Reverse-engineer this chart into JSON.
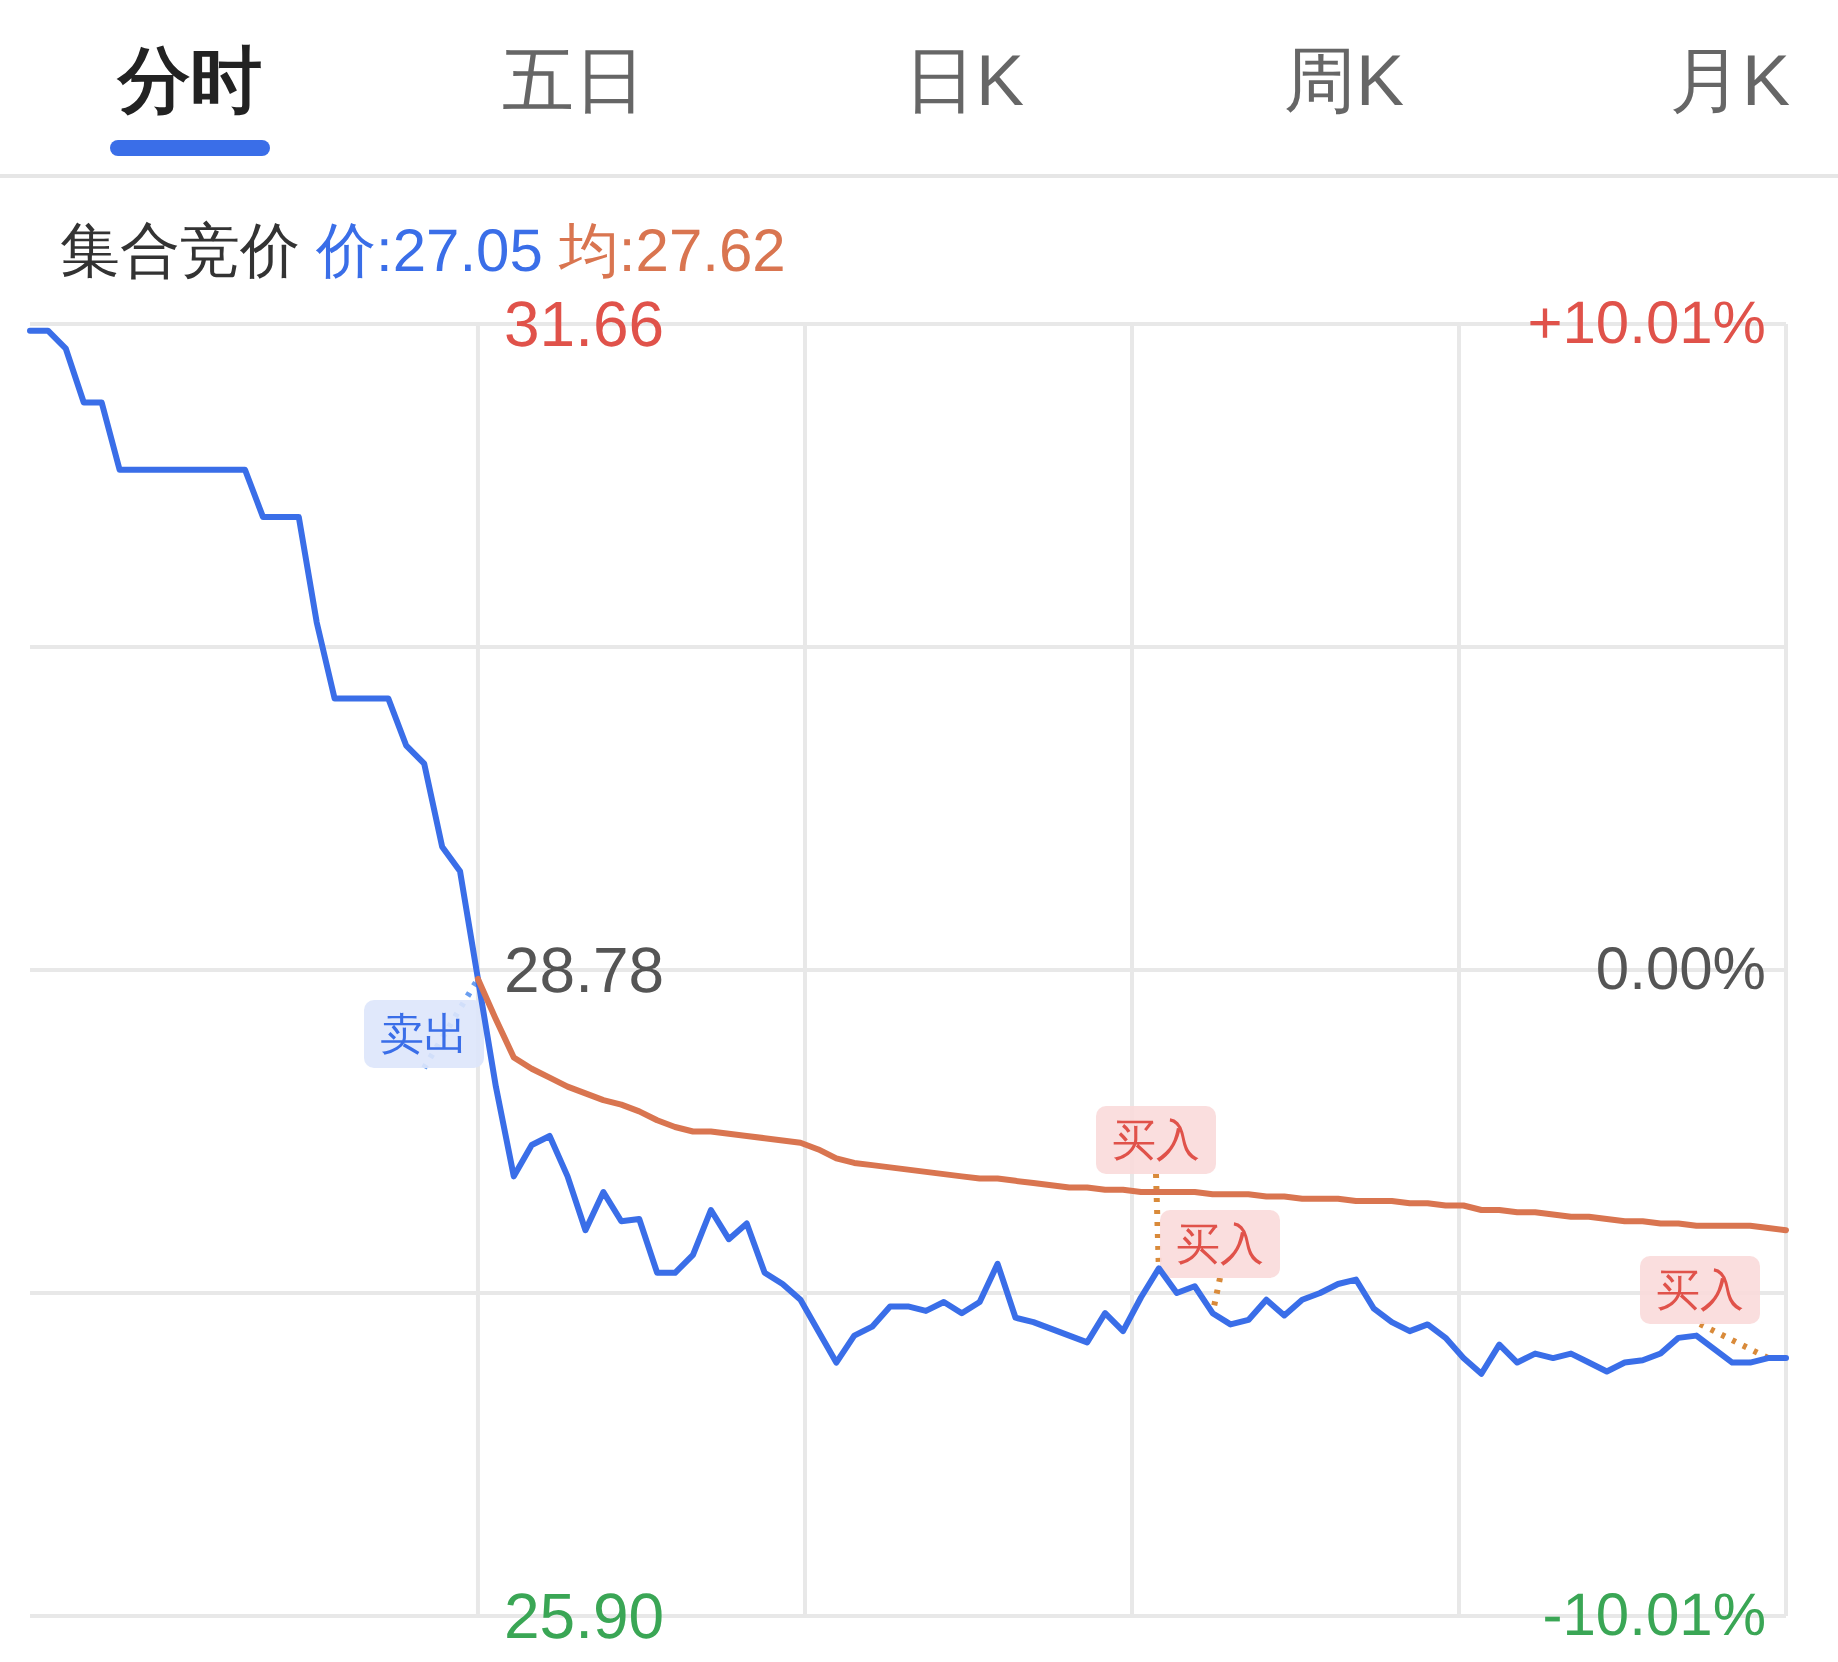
{
  "chart_data": {
    "type": "line",
    "title": "集合竞价",
    "annotations": [
      "分时",
      "五日",
      "日K",
      "周K",
      "月K",
      "卖出",
      "买入",
      "买入",
      "买入"
    ],
    "categories": [
      null,
      null,
      null,
      null,
      null,
      null,
      null,
      null,
      null,
      null,
      null,
      null,
      null,
      null,
      null,
      null,
      null,
      null,
      null,
      null,
      null,
      null,
      null,
      null,
      null,
      null,
      null,
      null,
      null,
      null,
      null,
      null,
      null,
      null,
      null,
      null,
      null,
      null,
      null,
      null,
      null,
      null,
      null,
      null,
      null,
      null,
      null,
      null,
      null,
      null,
      null,
      null,
      null,
      null,
      null,
      null,
      null,
      null,
      null,
      null,
      null,
      null,
      null,
      null,
      null,
      null,
      null,
      null,
      null,
      null,
      null,
      null,
      null,
      null,
      null,
      null,
      null,
      null,
      null,
      null,
      null,
      null,
      null,
      null,
      null,
      null,
      null,
      null,
      null,
      null,
      null,
      null,
      null,
      null,
      null,
      null,
      null,
      null,
      null
    ],
    "series": [
      {
        "name": "价:27.05",
        "color": "#3a6ee8",
        "values": [
          31.63,
          31.63,
          31.55,
          31.31,
          31.31,
          31.01,
          31.01,
          31.01,
          31.01,
          31.01,
          31.01,
          31.01,
          31.01,
          30.8,
          30.8,
          30.8,
          30.33,
          29.99,
          29.99,
          29.99,
          29.99,
          29.78,
          29.7,
          29.33,
          29.22,
          28.74,
          28.26,
          27.86,
          28.0,
          28.04,
          27.86,
          27.62,
          27.79,
          27.66,
          27.67,
          27.43,
          27.43,
          27.51,
          27.71,
          27.58,
          27.65,
          27.43,
          27.38,
          27.31,
          27.17,
          27.03,
          27.15,
          27.19,
          27.28,
          27.28,
          27.26,
          27.3,
          27.25,
          27.3,
          27.47,
          27.23,
          27.21,
          27.18,
          27.15,
          27.12,
          27.25,
          27.17,
          27.32,
          27.45,
          27.34,
          27.37,
          27.25,
          27.2,
          27.22,
          27.31,
          27.24,
          27.31,
          27.34,
          27.38,
          27.4,
          27.27,
          27.21,
          27.17,
          27.2,
          27.14,
          27.05,
          26.98,
          27.11,
          27.03,
          27.07,
          27.05,
          27.07,
          27.03,
          26.99,
          27.03,
          27.04,
          27.07,
          27.14,
          27.15,
          27.09,
          27.03,
          27.03,
          27.05,
          27.05
        ]
      },
      {
        "name": "均:27.62",
        "color": "#d97550",
        "values": [
          null,
          null,
          null,
          null,
          null,
          null,
          null,
          null,
          null,
          null,
          null,
          null,
          null,
          null,
          null,
          null,
          null,
          null,
          null,
          null,
          null,
          null,
          null,
          null,
          null,
          28.74,
          28.56,
          28.39,
          28.34,
          28.3,
          28.26,
          28.23,
          28.2,
          28.18,
          28.15,
          28.11,
          28.08,
          28.06,
          28.06,
          28.05,
          28.04,
          28.03,
          28.02,
          28.01,
          27.98,
          27.94,
          27.92,
          27.91,
          27.9,
          27.89,
          27.88,
          27.87,
          27.86,
          27.85,
          27.85,
          27.84,
          27.83,
          27.82,
          27.81,
          27.81,
          27.8,
          27.8,
          27.79,
          27.79,
          27.79,
          27.79,
          27.78,
          27.78,
          27.78,
          27.77,
          27.77,
          27.76,
          27.76,
          27.76,
          27.75,
          27.75,
          27.75,
          27.74,
          27.74,
          27.73,
          27.73,
          27.71,
          27.71,
          27.7,
          27.7,
          27.69,
          27.68,
          27.68,
          27.67,
          27.66,
          27.66,
          27.65,
          27.65,
          27.64,
          27.64,
          27.64,
          27.64,
          27.63,
          27.62
        ]
      }
    ],
    "ylim": [
      25.9,
      31.66
    ],
    "yticks": [
      {
        "value": 31.66,
        "label": "31.66"
      },
      {
        "value": 30.22,
        "label": null
      },
      {
        "value": 28.78,
        "label": "28.78"
      },
      {
        "value": 27.34,
        "label": null
      },
      {
        "value": 25.9,
        "label": "25.90"
      }
    ],
    "y2lim": [
      -10.01,
      10.01
    ],
    "y2ticks": [
      {
        "value": 10.01,
        "label": "+10.01%"
      },
      {
        "value": 0,
        "label": "0.00%"
      },
      {
        "value": -10.01,
        "label": "-10.01%"
      }
    ],
    "grid": true,
    "legend": "top left",
    "marker": "none",
    "line_style": "solid"
  }
}
